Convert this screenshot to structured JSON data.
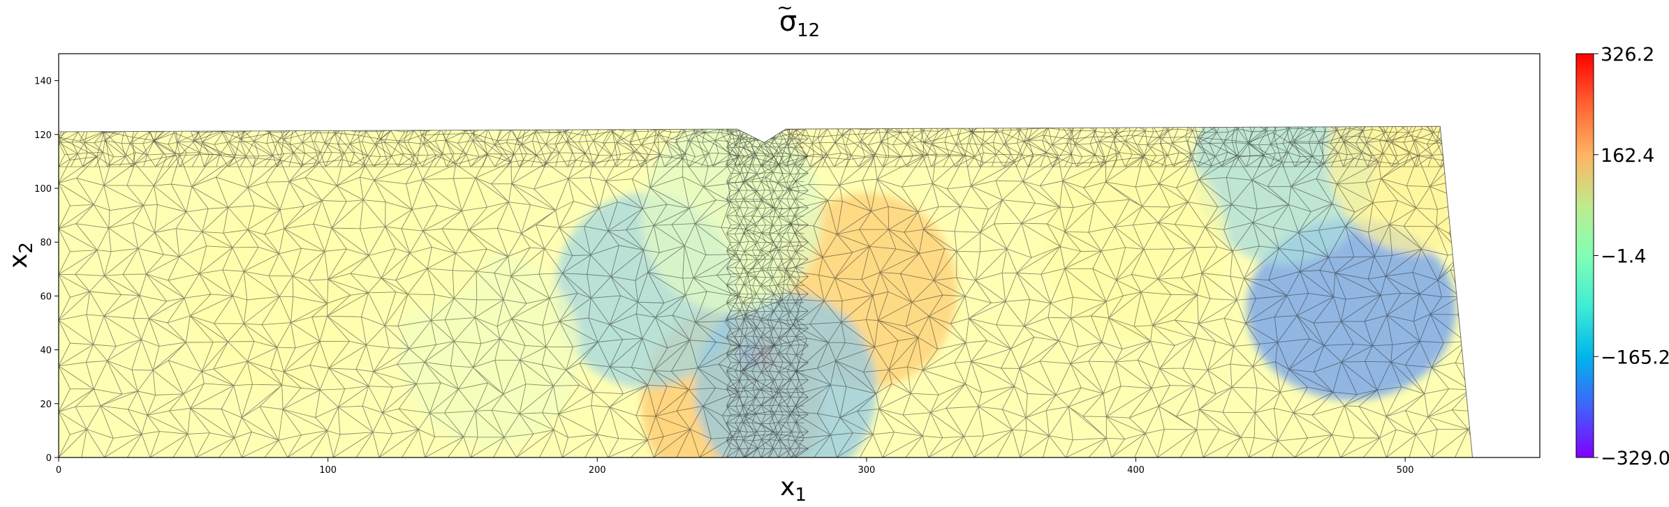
{
  "chart_data": {
    "type": "heatmap",
    "title": {
      "base": "σ",
      "accent": "~",
      "sub": "12"
    },
    "xlabel": {
      "base": "x",
      "sub": "1"
    },
    "ylabel": {
      "base": "x",
      "sub": "2"
    },
    "xlim": [
      0,
      550
    ],
    "ylim": [
      0,
      150
    ],
    "xticks": [
      0,
      100,
      200,
      300,
      400,
      500
    ],
    "yticks": [
      0,
      20,
      40,
      60,
      80,
      100,
      120,
      140
    ],
    "colorbar": {
      "vmin": -329.0,
      "vmax": 326.2,
      "ticks": [
        326.2,
        162.4,
        -1.4,
        -165.2,
        -329.0
      ],
      "tick_labels": [
        "326.2",
        "162.4",
        "−1.4",
        "−165.2",
        "−329.0"
      ],
      "colormap": "rainbow"
    },
    "mesh": "triangular",
    "domain_outline": [
      [
        0,
        0
      ],
      [
        525,
        0
      ],
      [
        513,
        123
      ],
      [
        270,
        122
      ],
      [
        262,
        117
      ],
      [
        252,
        122
      ],
      [
        0,
        121
      ]
    ],
    "stress_features": [
      {
        "x": 258,
        "y": 38,
        "value": -320
      },
      {
        "x": 262,
        "y": 38,
        "value": 320
      },
      {
        "x": 300,
        "y": 62,
        "value": 130
      },
      {
        "x": 250,
        "y": 20,
        "value": 140
      },
      {
        "x": 218,
        "y": 62,
        "value": -120
      },
      {
        "x": 480,
        "y": 55,
        "value": -190
      },
      {
        "x": 455,
        "y": 108,
        "value": -110
      },
      {
        "x": 505,
        "y": 112,
        "value": 60
      },
      {
        "x": 400,
        "y": 80,
        "value": 30
      },
      {
        "x": 80,
        "y": 60,
        "value": 20
      },
      {
        "x": 160,
        "y": 40,
        "value": -20
      },
      {
        "x": 130,
        "y": 90,
        "value": 10
      },
      {
        "x": 270,
        "y": 25,
        "value": -140
      },
      {
        "x": 250,
        "y": 90,
        "value": -40
      }
    ],
    "grid": false
  }
}
